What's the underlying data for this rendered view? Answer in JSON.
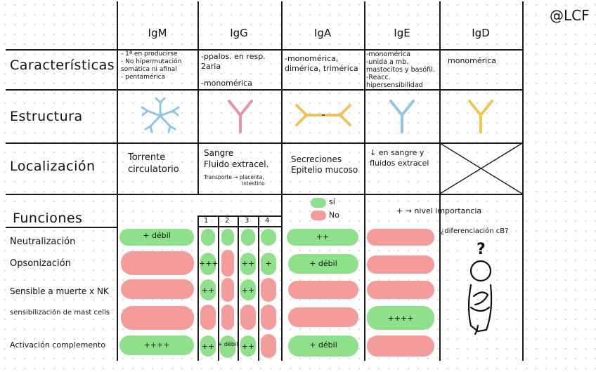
{
  "signature": "@LCF",
  "columns": [
    "IgM",
    "IgG",
    "IgA",
    "IgE",
    "IgD"
  ],
  "rows": {
    "caracteristicas": "Características",
    "estructura": "Estructura",
    "localizacion": "Localización",
    "funciones": "Funciones"
  },
  "caracteristicas": {
    "igm": [
      "- 1ª en producirse",
      "- No hipermutación somática ni afinal",
      "- pentamérica"
    ],
    "igg": [
      "-ppalos. en resp. 2aria",
      "-monomérica"
    ],
    "iga": [
      "-monomérica,",
      "dimérica, trimérica"
    ],
    "ige": [
      "-monomérica",
      "-unida a mb.",
      "mastocitos y basófil.",
      "-Reacc. hipersensibilidad"
    ],
    "igd": [
      "monomérica"
    ]
  },
  "localizacion": {
    "igm": [
      "Torrente",
      "circulatorio"
    ],
    "igg": [
      "Sangre",
      "Fluido extracel."
    ],
    "igg_note": [
      "Transporte → placenta,",
      "intestino"
    ],
    "iga": [
      "Secreciones",
      "Epitelio mucoso"
    ],
    "ige": [
      "↓ en sangre y",
      "fluidos extracel"
    ]
  },
  "legend": {
    "si": "sí",
    "no": "No",
    "importance": "+ → nivel importancia"
  },
  "igg_subclasses": [
    "1",
    "2",
    "3",
    "4"
  ],
  "functions": [
    {
      "label": "Neutralización"
    },
    {
      "label": "Opsonización"
    },
    {
      "label": "Sensible a muerte x NK"
    },
    {
      "label": "sensibilización de mast cells"
    },
    {
      "label": "Activación complemento"
    }
  ],
  "cells": {
    "neut_igm": "+ débil",
    "neut_iga": "++",
    "ops_igg1": "+++",
    "ops_igg3": "++",
    "ops_igg4": "+",
    "ops_iga": "+ débil",
    "nk_igg1": "++",
    "nk_igg3": "++",
    "mast_ige": "++++",
    "comp_igm": "++++",
    "comp_igg1": "++",
    "comp_igg2": "+ débil",
    "comp_igg3": "++",
    "comp_iga": "+ débil"
  },
  "igd_question": "¿diferenciación cB?",
  "colors": {
    "green": "#8fe08a",
    "red": "#f49c9c",
    "igg": "#e98fb0",
    "iga": "#f2c15a",
    "ige": "#8fc6e6",
    "igd": "#f2c54f",
    "igm": "#8fc6e6"
  }
}
